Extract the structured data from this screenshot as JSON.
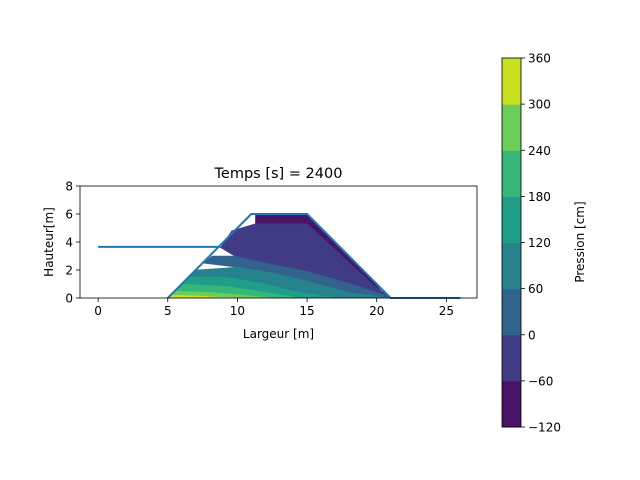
{
  "chart_data": {
    "type": "contour",
    "title": "Temps [s] = 2400",
    "xlabel": "Largeur [m]",
    "ylabel": "Hauteur[m]",
    "xlim": [
      -1.3,
      27.2
    ],
    "ylim": [
      0,
      8
    ],
    "xticks": [
      0,
      5,
      10,
      15,
      20,
      25
    ],
    "yticks": [
      0,
      2,
      4,
      6,
      8
    ],
    "grid": false,
    "water_line": {
      "x": [
        0,
        8.8
      ],
      "y": [
        3.65,
        3.65
      ],
      "color": "#1f77b4"
    },
    "dam_outline": {
      "x": [
        5,
        11,
        15,
        21,
        26
      ],
      "y": [
        0,
        6,
        6,
        0,
        0
      ],
      "color": "#1f77b4"
    },
    "contour_bands": [
      {
        "range": [
          -120,
          -60
        ],
        "color": "#481467",
        "polygon": [
          [
            11.3,
            4.2
          ],
          [
            11.3,
            6.0
          ],
          [
            15.0,
            6.0
          ],
          [
            20.4,
            0.55
          ],
          [
            19.8,
            0.9
          ],
          [
            15.0,
            5.3
          ],
          [
            11.8,
            5.3
          ]
        ]
      },
      {
        "range": [
          -60,
          0
        ],
        "color": "#3f3b84",
        "polygon": [
          [
            8.8,
            3.6
          ],
          [
            9.6,
            4.8
          ],
          [
            11.3,
            5.3
          ],
          [
            15.0,
            5.3
          ],
          [
            19.8,
            0.9
          ],
          [
            20.9,
            0.1
          ],
          [
            18.5,
            0.9
          ],
          [
            15.0,
            1.9
          ],
          [
            12.0,
            2.5
          ],
          [
            9.8,
            3.0
          ]
        ]
      },
      {
        "range": [
          0,
          60
        ],
        "color": "#31638d",
        "polygon": [
          [
            8.2,
            3.0
          ],
          [
            9.8,
            3.0
          ],
          [
            12.0,
            2.5
          ],
          [
            15.0,
            1.9
          ],
          [
            18.5,
            0.9
          ],
          [
            20.9,
            0.1
          ],
          [
            21.0,
            0.0
          ],
          [
            18.0,
            0.4
          ],
          [
            15.0,
            1.2
          ],
          [
            12.5,
            1.8
          ],
          [
            10.0,
            2.2
          ],
          [
            7.5,
            2.5
          ]
        ]
      },
      {
        "range": [
          60,
          120
        ],
        "color": "#26838e",
        "polygon": [
          [
            7.0,
            2.0
          ],
          [
            10.0,
            2.2
          ],
          [
            12.5,
            1.8
          ],
          [
            15.0,
            1.2
          ],
          [
            18.0,
            0.4
          ],
          [
            21.0,
            0.0
          ],
          [
            17.0,
            0.0
          ],
          [
            14.0,
            0.5
          ],
          [
            11.5,
            1.1
          ],
          [
            9.0,
            1.5
          ],
          [
            6.5,
            1.5
          ]
        ]
      },
      {
        "range": [
          120,
          180
        ],
        "color": "#1f9e89",
        "polygon": [
          [
            6.5,
            1.5
          ],
          [
            9.0,
            1.5
          ],
          [
            11.5,
            1.1
          ],
          [
            14.0,
            0.5
          ],
          [
            17.0,
            0.0
          ],
          [
            14.5,
            0.0
          ],
          [
            12.0,
            0.4
          ],
          [
            9.5,
            0.8
          ],
          [
            6.0,
            1.0
          ]
        ]
      },
      {
        "range": [
          180,
          240
        ],
        "color": "#35b779",
        "polygon": [
          [
            6.0,
            1.0
          ],
          [
            9.5,
            0.8
          ],
          [
            12.0,
            0.4
          ],
          [
            14.5,
            0.0
          ],
          [
            12.5,
            0.0
          ],
          [
            10.5,
            0.2
          ],
          [
            8.0,
            0.4
          ],
          [
            5.5,
            0.5
          ]
        ]
      },
      {
        "range": [
          240,
          300
        ],
        "color": "#6ccd5a",
        "polygon": [
          [
            5.5,
            0.5
          ],
          [
            8.0,
            0.4
          ],
          [
            10.5,
            0.2
          ],
          [
            12.5,
            0.0
          ],
          [
            5.0,
            0.0
          ]
        ]
      },
      {
        "range": [
          300,
          360
        ],
        "color": "#c8e020",
        "polygon": [
          [
            5.2,
            0.2
          ],
          [
            7.0,
            0.15
          ],
          [
            9.0,
            0.05
          ],
          [
            10.5,
            0.0
          ],
          [
            5.0,
            0.0
          ]
        ]
      }
    ],
    "colorbar": {
      "label": "Pression [cm]",
      "min": -120,
      "max": 360,
      "ticks": [
        -120,
        -60,
        0,
        60,
        120,
        180,
        240,
        300,
        360
      ],
      "tick_labels": [
        "−120",
        "−60",
        "0",
        "60",
        "120",
        "180",
        "240",
        "300",
        "360"
      ],
      "colors": [
        "#481467",
        "#3f3b84",
        "#31638d",
        "#26838e",
        "#1f9e89",
        "#35b779",
        "#6ccd5a",
        "#c8e020"
      ]
    }
  }
}
